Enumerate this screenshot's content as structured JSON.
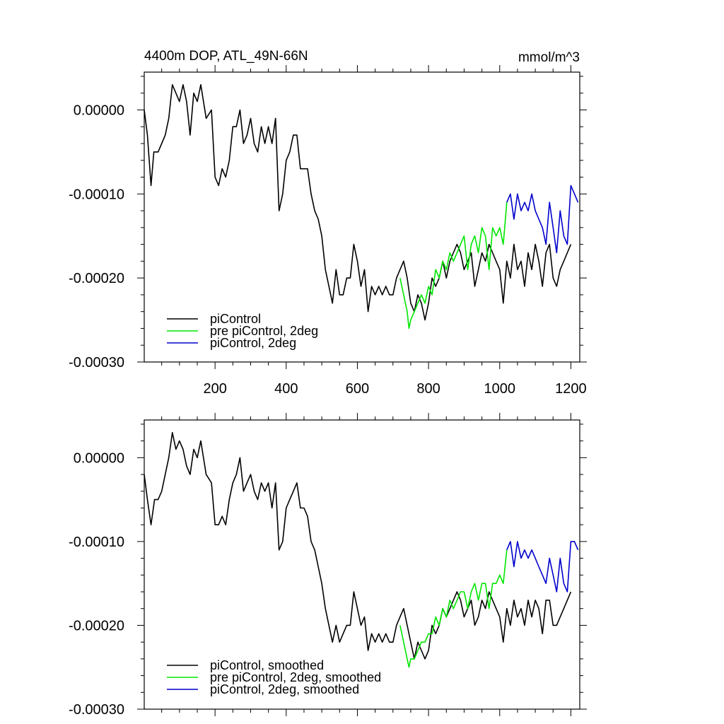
{
  "figure": {
    "title_left": "4400m DOP, ATL_49N-66N",
    "title_right": "mmol/m^3"
  },
  "colors": {
    "piControl": "#000000",
    "pre_piControl_2deg": "#00e600",
    "piControl_2deg": "#0000cd"
  },
  "chart_data": [
    {
      "type": "line",
      "title": "4400m DOP, ATL_49N-66N",
      "units": "mmol/m^3",
      "xlim": [
        1,
        1225
      ],
      "ylim": [
        -0.0003,
        4.5e-05
      ],
      "xticks": [
        200,
        400,
        600,
        800,
        1000,
        1200
      ],
      "xtick_labels": [
        "200",
        "400",
        "600",
        "800",
        "1000",
        "1200"
      ],
      "yticks": [
        0.0,
        -0.0001,
        -0.0002,
        -0.0003
      ],
      "ytick_labels": [
        "0.00000",
        "-0.00010",
        "-0.00020",
        "-0.00030"
      ],
      "legend_position": "bottom-left",
      "series": [
        {
          "name": "piControl",
          "color_key": "piControl",
          "x": [
            1,
            10,
            20,
            28,
            40,
            50,
            60,
            70,
            80,
            90,
            100,
            110,
            120,
            130,
            140,
            150,
            160,
            175,
            190,
            200,
            210,
            220,
            230,
            240,
            250,
            260,
            270,
            280,
            290,
            300,
            310,
            320,
            330,
            340,
            350,
            360,
            370,
            380,
            390,
            400,
            410,
            420,
            430,
            440,
            450,
            460,
            470,
            480,
            490,
            500,
            510,
            520,
            530,
            540,
            550,
            560,
            570,
            580,
            590,
            600,
            610,
            620,
            630,
            640,
            650,
            660,
            670,
            680,
            690,
            700,
            710,
            720,
            730,
            740,
            750,
            760,
            770,
            780,
            790,
            800,
            810,
            820,
            830,
            840,
            850,
            860,
            870,
            880,
            890,
            900,
            910,
            920,
            930,
            940,
            950,
            960,
            970,
            980,
            990,
            1000,
            1010,
            1020,
            1030,
            1040,
            1050,
            1060,
            1070,
            1080,
            1090,
            1100,
            1110,
            1120,
            1130,
            1140,
            1150,
            1160,
            1170,
            1180,
            1190,
            1200
          ],
          "y": [
            0.0,
            -3e-05,
            -9e-05,
            -5e-05,
            -5e-05,
            -4e-05,
            -3e-05,
            -1e-05,
            3e-05,
            2e-05,
            1e-05,
            3e-05,
            1e-05,
            -3e-05,
            2e-05,
            1e-05,
            3e-05,
            -1e-05,
            0.0,
            -8e-05,
            -9e-05,
            -7e-05,
            -8e-05,
            -6e-05,
            -2e-05,
            -2e-05,
            0.0,
            -4e-05,
            -3e-05,
            -1e-05,
            -4e-05,
            -5e-05,
            -2e-05,
            -4e-05,
            -2e-05,
            -4e-05,
            -1e-05,
            -0.00012,
            -0.0001,
            -6e-05,
            -5e-05,
            -3e-05,
            -3e-05,
            -7e-05,
            -7e-05,
            -7e-05,
            -0.0001,
            -0.00012,
            -0.00013,
            -0.00015,
            -0.00019,
            -0.00021,
            -0.00023,
            -0.00019,
            -0.00022,
            -0.00022,
            -0.0002,
            -0.0002,
            -0.00016,
            -0.00018,
            -0.00021,
            -0.00019,
            -0.00024,
            -0.00021,
            -0.00022,
            -0.00021,
            -0.00022,
            -0.00021,
            -0.00022,
            -0.00022,
            -0.0002,
            -0.00019,
            -0.00018,
            -0.0002,
            -0.00023,
            -0.00024,
            -0.00022,
            -0.00023,
            -0.00025,
            -0.00023,
            -0.0002,
            -0.00021,
            -0.0002,
            -0.00018,
            -0.0002,
            -0.00018,
            -0.00017,
            -0.00016,
            -0.00017,
            -0.00019,
            -0.00018,
            -0.00017,
            -0.00021,
            -0.00019,
            -0.00017,
            -0.00018,
            -0.00016,
            -0.00017,
            -0.00018,
            -0.00019,
            -0.00023,
            -0.00018,
            -0.0002,
            -0.00016,
            -0.00019,
            -0.00018,
            -0.00021,
            -0.00017,
            -0.00019,
            -0.00016,
            -0.00018,
            -0.00021,
            -0.00017,
            -0.00016,
            -0.0002,
            -0.00021,
            -0.00019,
            -0.00018,
            -0.00017,
            -0.00016
          ]
        },
        {
          "name": "pre piControl, 2deg",
          "color_key": "pre_piControl_2deg",
          "x": [
            720,
            730,
            740,
            745,
            750,
            760,
            770,
            780,
            790,
            800,
            810,
            820,
            830,
            840,
            850,
            860,
            870,
            880,
            890,
            900,
            910,
            920,
            930,
            940,
            950,
            960,
            970,
            980,
            990,
            1000,
            1010,
            1020
          ],
          "y": [
            -0.0002,
            -0.00022,
            -0.00024,
            -0.00026,
            -0.00025,
            -0.00024,
            -0.00023,
            -0.00022,
            -0.00023,
            -0.00021,
            -0.00022,
            -0.00019,
            -0.0002,
            -0.00018,
            -0.00019,
            -0.00017,
            -0.00018,
            -0.00017,
            -0.00016,
            -0.00015,
            -0.00019,
            -0.00016,
            -0.00015,
            -0.00017,
            -0.00014,
            -0.00015,
            -0.00019,
            -0.00014,
            -0.00015,
            -0.00014,
            -0.00016,
            -0.00011
          ]
        },
        {
          "name": "piControl, 2deg",
          "color_key": "piControl_2deg",
          "x": [
            1020,
            1030,
            1040,
            1050,
            1060,
            1070,
            1080,
            1090,
            1100,
            1110,
            1120,
            1130,
            1140,
            1150,
            1160,
            1170,
            1180,
            1190,
            1200,
            1210,
            1220
          ],
          "y": [
            -0.00011,
            -0.0001,
            -0.00013,
            -0.0001,
            -0.00012,
            -0.00011,
            -0.00012,
            -0.0001,
            -0.00012,
            -0.00013,
            -0.00014,
            -0.00016,
            -0.00011,
            -0.00014,
            -0.00017,
            -0.00012,
            -0.00015,
            -0.00016,
            -9e-05,
            -0.0001,
            -0.00011
          ]
        }
      ]
    },
    {
      "type": "line",
      "xlim": [
        1,
        1225
      ],
      "ylim": [
        -0.0003,
        4.5e-05
      ],
      "xticks": [
        200,
        400,
        600,
        800,
        1000,
        1200
      ],
      "yticks": [
        0.0,
        -0.0001,
        -0.0002,
        -0.0003
      ],
      "ytick_labels": [
        "0.00000",
        "-0.00010",
        "-0.00020",
        "-0.00030"
      ],
      "legend_position": "bottom-left",
      "series": [
        {
          "name": "piControl, smoothed",
          "color_key": "piControl",
          "x": [
            1,
            10,
            20,
            30,
            40,
            50,
            60,
            70,
            80,
            90,
            100,
            110,
            120,
            130,
            140,
            150,
            160,
            175,
            190,
            200,
            210,
            220,
            230,
            240,
            250,
            260,
            270,
            280,
            290,
            300,
            310,
            320,
            330,
            340,
            350,
            360,
            370,
            380,
            390,
            400,
            410,
            420,
            430,
            440,
            450,
            460,
            470,
            480,
            490,
            500,
            510,
            520,
            530,
            540,
            550,
            560,
            570,
            580,
            590,
            600,
            610,
            620,
            630,
            640,
            650,
            660,
            670,
            680,
            690,
            700,
            710,
            720,
            730,
            740,
            750,
            760,
            770,
            780,
            790,
            800,
            810,
            820,
            830,
            840,
            850,
            860,
            870,
            880,
            890,
            900,
            910,
            920,
            930,
            940,
            950,
            960,
            970,
            980,
            990,
            1000,
            1010,
            1020,
            1030,
            1040,
            1050,
            1060,
            1070,
            1080,
            1090,
            1100,
            1110,
            1120,
            1130,
            1140,
            1150,
            1160,
            1170,
            1180,
            1190,
            1200
          ],
          "y": [
            -2e-05,
            -5e-05,
            -8e-05,
            -5e-05,
            -5e-05,
            -4e-05,
            -2e-05,
            0.0,
            3e-05,
            1e-05,
            2e-05,
            1e-05,
            -1e-05,
            -2e-05,
            1e-05,
            0.0,
            2e-05,
            -2e-05,
            -3e-05,
            -8e-05,
            -8e-05,
            -7e-05,
            -8e-05,
            -5e-05,
            -3e-05,
            -2e-05,
            0.0,
            -4e-05,
            -3e-05,
            -2e-05,
            -4e-05,
            -5e-05,
            -3e-05,
            -4e-05,
            -3e-05,
            -6e-05,
            -3e-05,
            -0.00011,
            -0.0001,
            -6e-05,
            -5e-05,
            -4e-05,
            -3e-05,
            -6e-05,
            -6e-05,
            -7e-05,
            -0.0001,
            -0.00011,
            -0.00013,
            -0.00015,
            -0.00018,
            -0.0002,
            -0.00022,
            -0.0002,
            -0.00022,
            -0.00021,
            -0.0002,
            -0.0002,
            -0.00016,
            -0.00018,
            -0.0002,
            -0.00019,
            -0.00023,
            -0.00021,
            -0.00022,
            -0.00021,
            -0.00022,
            -0.00021,
            -0.00022,
            -0.00022,
            -0.0002,
            -0.00019,
            -0.00018,
            -0.0002,
            -0.00022,
            -0.00024,
            -0.00022,
            -0.00023,
            -0.00024,
            -0.00023,
            -0.0002,
            -0.00021,
            -0.0002,
            -0.00018,
            -0.00019,
            -0.00018,
            -0.00017,
            -0.00016,
            -0.00017,
            -0.00019,
            -0.00018,
            -0.00017,
            -0.0002,
            -0.00019,
            -0.00017,
            -0.00018,
            -0.00016,
            -0.00017,
            -0.00018,
            -0.00019,
            -0.00022,
            -0.00018,
            -0.0002,
            -0.00017,
            -0.00019,
            -0.00018,
            -0.0002,
            -0.00017,
            -0.00019,
            -0.00017,
            -0.00018,
            -0.00021,
            -0.00017,
            -0.00017,
            -0.0002,
            -0.0002,
            -0.00019,
            -0.00018,
            -0.00017,
            -0.00016
          ]
        },
        {
          "name": "pre piControl, 2deg, smoothed",
          "color_key": "pre_piControl_2deg",
          "x": [
            720,
            730,
            740,
            745,
            750,
            760,
            770,
            780,
            790,
            800,
            810,
            820,
            830,
            840,
            850,
            860,
            870,
            880,
            890,
            900,
            910,
            920,
            930,
            940,
            950,
            960,
            970,
            980,
            990,
            1000,
            1010,
            1020
          ],
          "y": [
            -0.0002,
            -0.00022,
            -0.00024,
            -0.00025,
            -0.00024,
            -0.00024,
            -0.00023,
            -0.00022,
            -0.00022,
            -0.00021,
            -0.00021,
            -0.00019,
            -0.0002,
            -0.00018,
            -0.00019,
            -0.00017,
            -0.00018,
            -0.00017,
            -0.00016,
            -0.00016,
            -0.00018,
            -0.00016,
            -0.00015,
            -0.00017,
            -0.00015,
            -0.00015,
            -0.00018,
            -0.00015,
            -0.00015,
            -0.00014,
            -0.00015,
            -0.00011
          ]
        },
        {
          "name": "piControl, 2deg, smoothed",
          "color_key": "piControl_2deg",
          "x": [
            1020,
            1030,
            1040,
            1050,
            1060,
            1070,
            1080,
            1090,
            1100,
            1110,
            1120,
            1130,
            1140,
            1150,
            1160,
            1170,
            1180,
            1190,
            1200,
            1210,
            1220
          ],
          "y": [
            -0.00011,
            -0.0001,
            -0.00013,
            -0.0001,
            -0.00012,
            -0.00011,
            -0.00012,
            -0.00011,
            -0.00012,
            -0.00013,
            -0.00014,
            -0.00015,
            -0.00012,
            -0.00014,
            -0.00016,
            -0.00012,
            -0.00015,
            -0.00016,
            -0.0001,
            -0.0001,
            -0.00011
          ]
        }
      ]
    }
  ]
}
